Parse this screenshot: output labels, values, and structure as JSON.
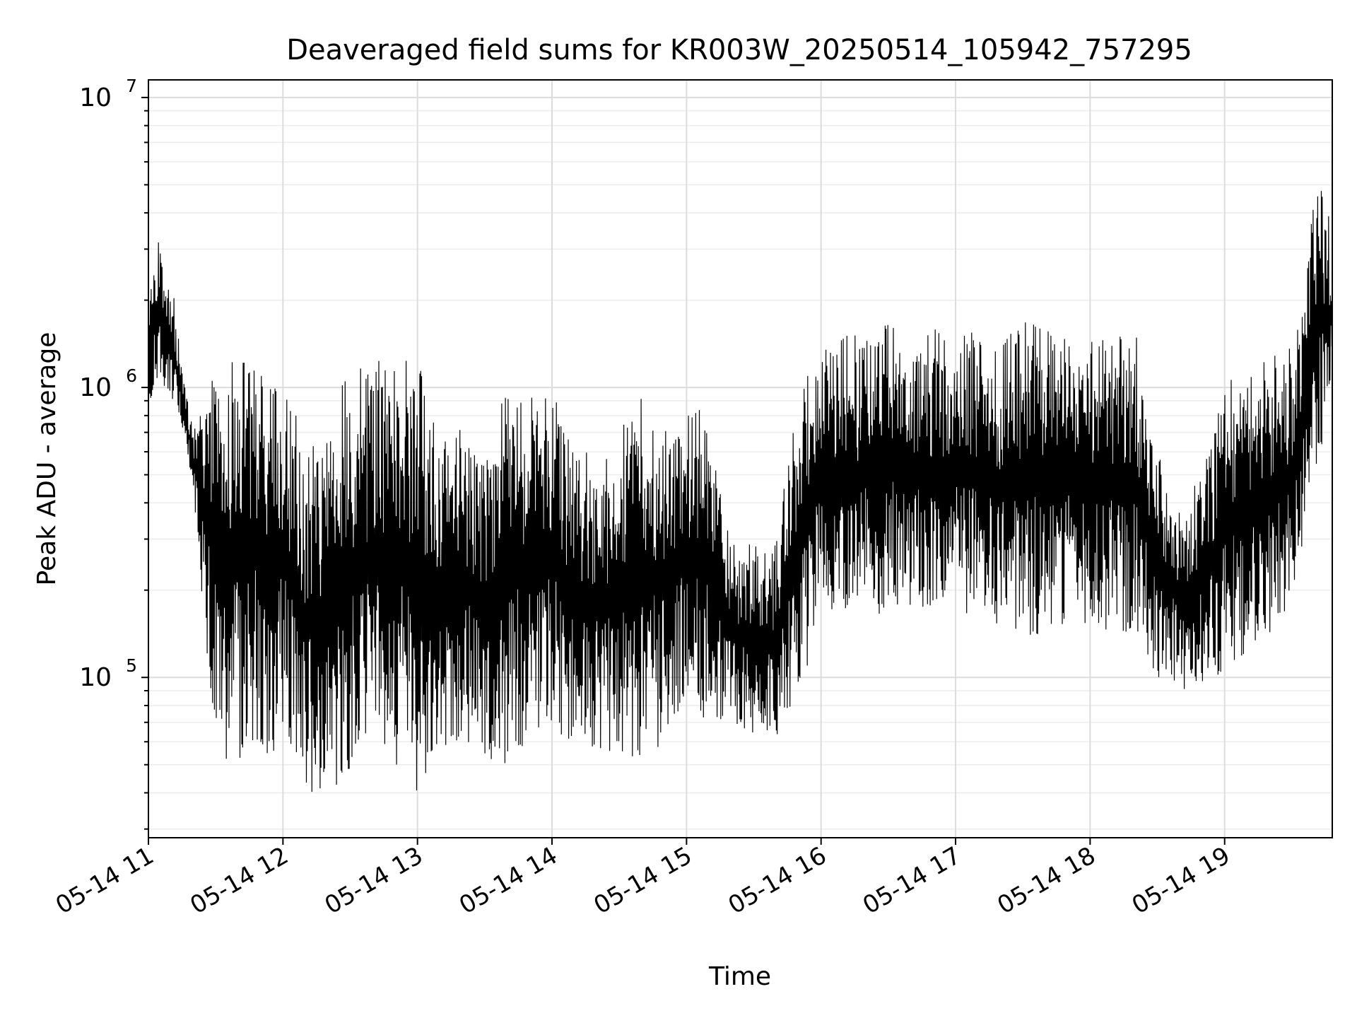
{
  "chart_data": {
    "type": "line",
    "title": "Deaveraged field sums for KR003W_20250514_105942_757295",
    "xlabel": "Time",
    "ylabel": "Peak ADU - average",
    "yscale": "log",
    "ylim": [
      28000,
      11500000
    ],
    "xlim": [
      "2025-05-14 11:00",
      "2025-05-14 19:48"
    ],
    "grid": true,
    "x_ticks": [
      {
        "value": "2025-05-14 11:00",
        "label": "05-14 11"
      },
      {
        "value": "2025-05-14 12:00",
        "label": "05-14 12"
      },
      {
        "value": "2025-05-14 13:00",
        "label": "05-14 13"
      },
      {
        "value": "2025-05-14 14:00",
        "label": "05-14 14"
      },
      {
        "value": "2025-05-14 15:00",
        "label": "05-14 15"
      },
      {
        "value": "2025-05-14 16:00",
        "label": "05-14 16"
      },
      {
        "value": "2025-05-14 17:00",
        "label": "05-14 17"
      },
      {
        "value": "2025-05-14 18:00",
        "label": "05-14 18"
      },
      {
        "value": "2025-05-14 19:00",
        "label": "05-14 19"
      }
    ],
    "y_ticks": [
      {
        "value": 100000,
        "base": "10",
        "exp": "5"
      },
      {
        "value": 1000000,
        "base": "10",
        "exp": "6"
      },
      {
        "value": 10000000,
        "base": "10",
        "exp": "7"
      }
    ],
    "line_color": "#000000",
    "series": [
      {
        "x": [
          "2025-05-14 11:00",
          "2025-05-14 11:05",
          "2025-05-14 11:10",
          "2025-05-14 11:15",
          "2025-05-14 11:20",
          "2025-05-14 11:25",
          "2025-05-14 11:30",
          "2025-05-14 11:35",
          "2025-05-14 11:40",
          "2025-05-14 11:45",
          "2025-05-14 11:50",
          "2025-05-14 11:55",
          "2025-05-14 12:00",
          "2025-05-14 12:10",
          "2025-05-14 12:20",
          "2025-05-14 12:30",
          "2025-05-14 12:40",
          "2025-05-14 12:50",
          "2025-05-14 13:00",
          "2025-05-14 13:10",
          "2025-05-14 13:20",
          "2025-05-14 13:30",
          "2025-05-14 13:40",
          "2025-05-14 13:50",
          "2025-05-14 14:00",
          "2025-05-14 14:10",
          "2025-05-14 14:20",
          "2025-05-14 14:30",
          "2025-05-14 14:40",
          "2025-05-14 14:50",
          "2025-05-14 15:00",
          "2025-05-14 15:10",
          "2025-05-14 15:20",
          "2025-05-14 15:30",
          "2025-05-14 15:40",
          "2025-05-14 15:50",
          "2025-05-14 16:00",
          "2025-05-14 16:10",
          "2025-05-14 16:20",
          "2025-05-14 16:30",
          "2025-05-14 16:40",
          "2025-05-14 16:50",
          "2025-05-14 17:00",
          "2025-05-14 17:10",
          "2025-05-14 17:20",
          "2025-05-14 17:30",
          "2025-05-14 17:40",
          "2025-05-14 17:50",
          "2025-05-14 18:00",
          "2025-05-14 18:10",
          "2025-05-14 18:20",
          "2025-05-14 18:30",
          "2025-05-14 18:40",
          "2025-05-14 18:50",
          "2025-05-14 19:00",
          "2025-05-14 19:10",
          "2025-05-14 19:20",
          "2025-05-14 19:30",
          "2025-05-14 19:35",
          "2025-05-14 19:40",
          "2025-05-14 19:45",
          "2025-05-14 19:48"
        ],
        "y_high": [
          2100000,
          3500000,
          2500000,
          1200000,
          700000,
          1000000,
          1100000,
          1200000,
          1300000,
          1300000,
          1300000,
          1100000,
          1200000,
          600000,
          700000,
          1300000,
          1300000,
          1300000,
          1300000,
          700000,
          800000,
          600000,
          1000000,
          1000000,
          1000000,
          600000,
          600000,
          700000,
          1000000,
          800000,
          900000,
          800000,
          300000,
          300000,
          300000,
          1000000,
          1500000,
          1500000,
          1600000,
          1800000,
          1700000,
          1600000,
          1700000,
          1500000,
          1400000,
          1700000,
          1600000,
          1600000,
          1600000,
          1500000,
          1600000,
          600000,
          400000,
          500000,
          1100000,
          1200000,
          1300000,
          1400000,
          1800000,
          5500000,
          4500000,
          3500000
        ],
        "y_low": [
          900000,
          1000000,
          900000,
          700000,
          450000,
          150000,
          60000,
          50000,
          50000,
          60000,
          60000,
          50000,
          60000,
          40000,
          40000,
          40000,
          50000,
          50000,
          40000,
          50000,
          60000,
          50000,
          50000,
          60000,
          70000,
          55000,
          55000,
          50000,
          50000,
          60000,
          80000,
          70000,
          70000,
          60000,
          60000,
          80000,
          180000,
          150000,
          160000,
          170000,
          170000,
          150000,
          160000,
          170000,
          150000,
          140000,
          140000,
          150000,
          150000,
          140000,
          140000,
          100000,
          90000,
          90000,
          100000,
          120000,
          140000,
          180000,
          300000,
          500000,
          700000,
          900000
        ]
      }
    ]
  }
}
